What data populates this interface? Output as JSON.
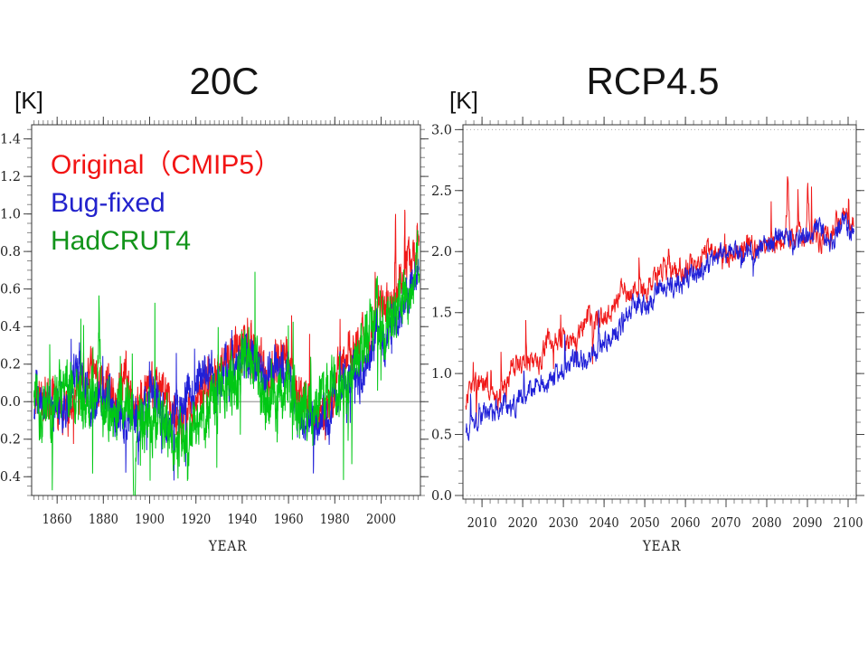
{
  "canvas": {
    "background": "#ffffff"
  },
  "chart_data": [
    {
      "id": "chart-20c",
      "type": "line",
      "title": "20C",
      "unit_label": "[K]",
      "xlabel": "YEAR",
      "xlim": [
        1849,
        2017
      ],
      "ylim": [
        -0.5,
        1.475
      ],
      "xticks": [
        1860,
        1880,
        1900,
        1920,
        1940,
        1960,
        1980,
        2000
      ],
      "yticks": [
        -0.4,
        -0.2,
        0.0,
        0.2,
        0.4,
        0.6,
        0.8,
        1.0,
        1.2,
        1.4
      ],
      "x_minor_step": 2,
      "y_minor_step": 0.05,
      "reference_line": 0.0,
      "dotted_guides": [],
      "legend_position": "top-left",
      "series": [
        {
          "id": "original-cmip5",
          "name": "Original（CMIP5）",
          "color": "#f01818",
          "label_color": "#f21414",
          "x_start": 1850,
          "x_end": 2016.4,
          "keypoints": [
            [
              1850,
              0.02
            ],
            [
              1862,
              0.0
            ],
            [
              1870,
              0.08
            ],
            [
              1878,
              0.12
            ],
            [
              1885,
              -0.03
            ],
            [
              1890,
              0.15
            ],
            [
              1893,
              -0.05
            ],
            [
              1900,
              0.05
            ],
            [
              1905,
              0.1
            ],
            [
              1910,
              -0.05
            ],
            [
              1917,
              -0.1
            ],
            [
              1926,
              0.12
            ],
            [
              1932,
              0.2
            ],
            [
              1938,
              0.25
            ],
            [
              1944,
              0.28
            ],
            [
              1951,
              0.1
            ],
            [
              1957,
              0.2
            ],
            [
              1963,
              0.1
            ],
            [
              1968,
              -0.05
            ],
            [
              1976,
              -0.1
            ],
            [
              1982,
              0.15
            ],
            [
              1990,
              0.3
            ],
            [
              1995,
              0.3
            ],
            [
              1998,
              0.45
            ],
            [
              2002,
              0.5
            ],
            [
              2005.8,
              0.6
            ],
            [
              2006.2,
              1.12
            ],
            [
              2006.6,
              0.65
            ],
            [
              2009.9,
              0.7
            ],
            [
              2010.3,
              1.05
            ],
            [
              2010.7,
              0.7
            ],
            [
              2013,
              0.75
            ],
            [
              2016,
              0.9
            ]
          ],
          "noise": {
            "fast_sigma": 0.08,
            "fast_phi": 0.55,
            "slow_sigma": 0.02,
            "slow_phi": 0.96,
            "spike_prob": 0.008,
            "spike_amp": 0.22,
            "spike_up_bias": 0.55,
            "seed": 11
          }
        },
        {
          "id": "bug-fixed",
          "name": "Bug-fixed",
          "color": "#2020d8",
          "label_color": "#2222cc",
          "x_start": 1850,
          "x_end": 2016.4,
          "keypoints": [
            [
              1850,
              0.0
            ],
            [
              1858,
              0.05
            ],
            [
              1863,
              -0.05
            ],
            [
              1868,
              0.15
            ],
            [
              1875,
              0.0
            ],
            [
              1880,
              0.05
            ],
            [
              1887,
              -0.12
            ],
            [
              1895,
              -0.05
            ],
            [
              1901,
              0.08
            ],
            [
              1908,
              -0.08
            ],
            [
              1915,
              0.0
            ],
            [
              1922,
              0.12
            ],
            [
              1930,
              0.1
            ],
            [
              1938,
              0.22
            ],
            [
              1944,
              0.25
            ],
            [
              1950,
              0.05
            ],
            [
              1956,
              0.15
            ],
            [
              1961,
              0.05
            ],
            [
              1965,
              -0.18
            ],
            [
              1970,
              -0.05
            ],
            [
              1976,
              -0.15
            ],
            [
              1982,
              0.05
            ],
            [
              1988,
              0.18
            ],
            [
              1994,
              0.22
            ],
            [
              2000,
              0.35
            ],
            [
              2005,
              0.45
            ],
            [
              2010,
              0.5
            ],
            [
              2013,
              0.6
            ],
            [
              2016,
              0.7
            ]
          ],
          "noise": {
            "fast_sigma": 0.08,
            "fast_phi": 0.55,
            "slow_sigma": 0.02,
            "slow_phi": 0.96,
            "spike_prob": 0.008,
            "spike_amp": 0.22,
            "spike_up_bias": 0.45,
            "seed": 23
          }
        },
        {
          "id": "hadcrut4",
          "name": "HadCRUT4",
          "color": "#00c814",
          "label_color": "#12941a",
          "x_start": 1850,
          "x_end": 2016.5,
          "keypoints": [
            [
              1850,
              0.0
            ],
            [
              1856,
              -0.05
            ],
            [
              1862,
              0.02
            ],
            [
              1866,
              0.08
            ],
            [
              1871,
              -0.05
            ],
            [
              1877.4,
              0.05
            ],
            [
              1878.1,
              0.5
            ],
            [
              1879,
              0.0
            ],
            [
              1884,
              -0.15
            ],
            [
              1889,
              -0.05
            ],
            [
              1892.6,
              -0.1
            ],
            [
              1893.3,
              -0.62
            ],
            [
              1894.2,
              -0.15
            ],
            [
              1900,
              0.0
            ],
            [
              1904,
              -0.12
            ],
            [
              1910,
              -0.2
            ],
            [
              1917,
              -0.25
            ],
            [
              1924,
              -0.05
            ],
            [
              1931,
              0.05
            ],
            [
              1938,
              0.15
            ],
            [
              1942,
              0.2
            ],
            [
              1946,
              0.1
            ],
            [
              1951,
              0.0
            ],
            [
              1957,
              0.1
            ],
            [
              1962,
              0.05
            ],
            [
              1966,
              -0.05
            ],
            [
              1972,
              0.0
            ],
            [
              1978,
              0.05
            ],
            [
              1984,
              0.1
            ],
            [
              1990,
              0.25
            ],
            [
              1997,
              0.35
            ],
            [
              1998.2,
              0.55
            ],
            [
              1999,
              0.3
            ],
            [
              2003,
              0.45
            ],
            [
              2007,
              0.45
            ],
            [
              2010,
              0.55
            ],
            [
              2014,
              0.55
            ],
            [
              2015.8,
              0.78
            ],
            [
              2016.5,
              0.6
            ]
          ],
          "noise": {
            "fast_sigma": 0.11,
            "fast_phi": 0.5,
            "slow_sigma": 0.022,
            "slow_phi": 0.95,
            "spike_prob": 0.02,
            "spike_amp": 0.3,
            "spike_up_bias": 0.5,
            "seed": 37
          }
        }
      ]
    },
    {
      "id": "chart-rcp45",
      "type": "line",
      "title": "RCP4.5",
      "unit_label": "[K]",
      "xlabel": "YEAR",
      "xlim": [
        2005.3,
        2102
      ],
      "ylim": [
        -0.03,
        3.04
      ],
      "xticks": [
        2010,
        2020,
        2030,
        2040,
        2050,
        2060,
        2070,
        2080,
        2090,
        2100
      ],
      "yticks": [
        0.0,
        0.5,
        1.0,
        1.5,
        2.0,
        2.5,
        3.0
      ],
      "x_minor_step": 2,
      "y_minor_step": 0.1,
      "reference_line": null,
      "dotted_guides": [
        0.0,
        3.0
      ],
      "legend_position": "none",
      "series": [
        {
          "id": "red-series",
          "color": "#f01818",
          "x_start": 2006,
          "x_end": 2101.5,
          "keypoints": [
            [
              2006,
              0.8
            ],
            [
              2008,
              0.95
            ],
            [
              2011,
              0.9
            ],
            [
              2014,
              0.85
            ],
            [
              2017,
              1.0
            ],
            [
              2020,
              1.1
            ],
            [
              2023,
              1.05
            ],
            [
              2026,
              1.2
            ],
            [
              2029,
              1.3
            ],
            [
              2032,
              1.25
            ],
            [
              2035,
              1.4
            ],
            [
              2038,
              1.45
            ],
            [
              2041,
              1.5
            ],
            [
              2044,
              1.6
            ],
            [
              2047,
              1.65
            ],
            [
              2050,
              1.7
            ],
            [
              2053,
              1.8
            ],
            [
              2056,
              1.85
            ],
            [
              2059,
              1.8
            ],
            [
              2062,
              1.9
            ],
            [
              2065,
              2.0
            ],
            [
              2068,
              1.95
            ],
            [
              2071,
              2.0
            ],
            [
              2074,
              2.0
            ],
            [
              2077,
              2.05
            ],
            [
              2080,
              2.05
            ],
            [
              2084.6,
              2.1
            ],
            [
              2085.1,
              2.58
            ],
            [
              2085.7,
              2.1
            ],
            [
              2087,
              2.15
            ],
            [
              2089.6,
              2.1
            ],
            [
              2090.1,
              2.58
            ],
            [
              2090.7,
              2.1
            ],
            [
              2093,
              2.1
            ],
            [
              2096,
              2.15
            ],
            [
              2098.5,
              2.4
            ],
            [
              2101,
              2.2
            ]
          ],
          "noise": {
            "fast_sigma": 0.07,
            "fast_phi": 0.5,
            "slow_sigma": 0.016,
            "slow_phi": 0.95,
            "spike_prob": 0.015,
            "spike_amp": 0.25,
            "spike_up_bias": 0.8,
            "seed": 51
          }
        },
        {
          "id": "blue-series",
          "color": "#2020d8",
          "x_start": 2006,
          "x_end": 2101.5,
          "keypoints": [
            [
              2006,
              0.55
            ],
            [
              2009,
              0.65
            ],
            [
              2012,
              0.7
            ],
            [
              2015,
              0.7
            ],
            [
              2018,
              0.75
            ],
            [
              2021,
              0.85
            ],
            [
              2024,
              0.9
            ],
            [
              2027,
              0.95
            ],
            [
              2030,
              1.0
            ],
            [
              2033,
              1.1
            ],
            [
              2036,
              1.1
            ],
            [
              2039,
              1.2
            ],
            [
              2042,
              1.3
            ],
            [
              2045,
              1.45
            ],
            [
              2048,
              1.5
            ],
            [
              2051,
              1.55
            ],
            [
              2054,
              1.65
            ],
            [
              2057,
              1.75
            ],
            [
              2060,
              1.8
            ],
            [
              2063,
              1.85
            ],
            [
              2066,
              1.9
            ],
            [
              2069,
              1.95
            ],
            [
              2072,
              2.0
            ],
            [
              2075,
              2.0
            ],
            [
              2078,
              2.05
            ],
            [
              2081,
              2.05
            ],
            [
              2084,
              2.1
            ],
            [
              2087,
              2.05
            ],
            [
              2090,
              2.15
            ],
            [
              2093,
              2.2
            ],
            [
              2096,
              2.1
            ],
            [
              2099,
              2.25
            ],
            [
              2101,
              2.2
            ]
          ],
          "noise": {
            "fast_sigma": 0.07,
            "fast_phi": 0.5,
            "slow_sigma": 0.016,
            "slow_phi": 0.95,
            "spike_prob": 0.01,
            "spike_amp": 0.18,
            "spike_up_bias": 0.5,
            "seed": 77
          }
        }
      ]
    }
  ]
}
